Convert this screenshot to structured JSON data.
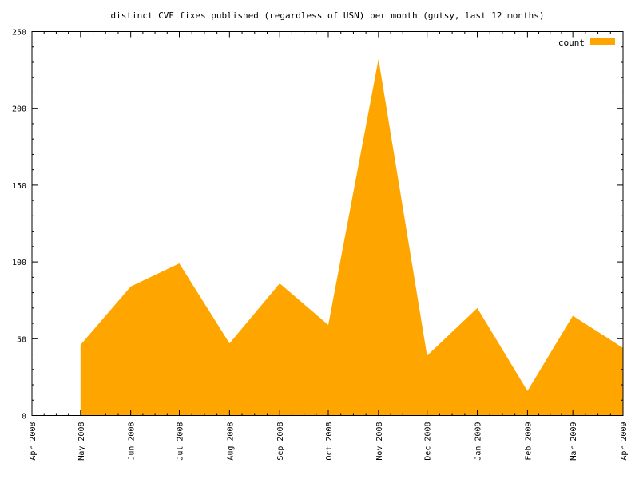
{
  "chart_data": {
    "type": "area",
    "title": "distinct CVE fixes published (regardless of USN) per month (gutsy, last 12 months)",
    "xlabel": "",
    "ylabel": "",
    "x_ticks": [
      "Apr 2008",
      "May 2008",
      "Jun 2008",
      "Jul 2008",
      "Aug 2008",
      "Sep 2008",
      "Oct 2008",
      "Nov 2008",
      "Dec 2008",
      "Jan 2009",
      "Feb 2009",
      "Mar 2009",
      "Apr 2009"
    ],
    "x_tick_dates": [
      "2008-04-01",
      "2008-05-01",
      "2008-06-01",
      "2008-07-01",
      "2008-08-01",
      "2008-09-01",
      "2008-10-01",
      "2008-11-01",
      "2008-12-01",
      "2009-01-01",
      "2009-02-01",
      "2009-03-01",
      "2009-04-01"
    ],
    "xlim": [
      "2008-04-01",
      "2009-04-01"
    ],
    "ylim": [
      0,
      250
    ],
    "y_ticks": [
      0,
      50,
      100,
      150,
      200,
      250
    ],
    "grid": false,
    "legend": "top-right",
    "series": [
      {
        "name": "count",
        "color": "#ffa500",
        "x": [
          "2008-05-01",
          "2008-06-01",
          "2008-07-01",
          "2008-08-01",
          "2008-09-01",
          "2008-10-01",
          "2008-11-01",
          "2008-12-01",
          "2009-01-01",
          "2009-02-01",
          "2009-03-01",
          "2009-04-01"
        ],
        "values": [
          46,
          84,
          99,
          47,
          86,
          59,
          232,
          39,
          70,
          16,
          65,
          44
        ]
      }
    ]
  }
}
